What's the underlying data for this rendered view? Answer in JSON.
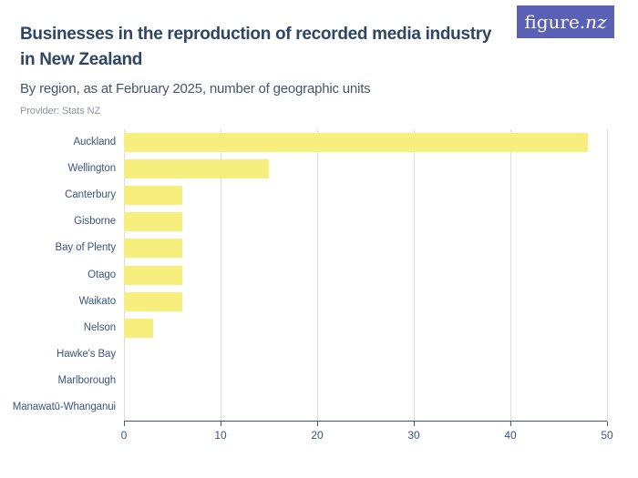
{
  "header": {
    "title_line1": "Businesses in the reproduction of recorded media industry",
    "title_line2": "in New Zealand",
    "subtitle": "By region, as at February 2025, number of geographic units",
    "provider": "Provider: Stats NZ",
    "logo_text": "figure.",
    "logo_suffix": "nz"
  },
  "colors": {
    "bar": "#f7ef7d",
    "logo_background": "#5a60b5",
    "title_text": "#2d4663",
    "axis_line": "#4a5568",
    "axis_label": "#3a5680",
    "gridline": "#dcdcdc"
  },
  "chart_data": {
    "type": "bar",
    "orientation": "horizontal",
    "title": "Businesses in the reproduction of recorded media industry in New Zealand",
    "subtitle": "By region, as at February 2025, number of geographic units",
    "provider": "Provider: Stats NZ",
    "categories": [
      "Auckland",
      "Wellington",
      "Canterbury",
      "Gisborne",
      "Bay of Plenty",
      "Otago",
      "Waikato",
      "Nelson",
      "Hawke's Bay",
      "Marlborough",
      "Manawatū-Whanganui"
    ],
    "values": [
      48,
      15,
      6,
      6,
      6,
      6,
      6,
      3,
      0,
      0,
      0
    ],
    "xlabel": "",
    "ylabel": "",
    "xlim": [
      0,
      50
    ],
    "xticks": [
      0,
      10,
      20,
      30,
      40,
      50
    ],
    "grid": true,
    "legend": false
  }
}
